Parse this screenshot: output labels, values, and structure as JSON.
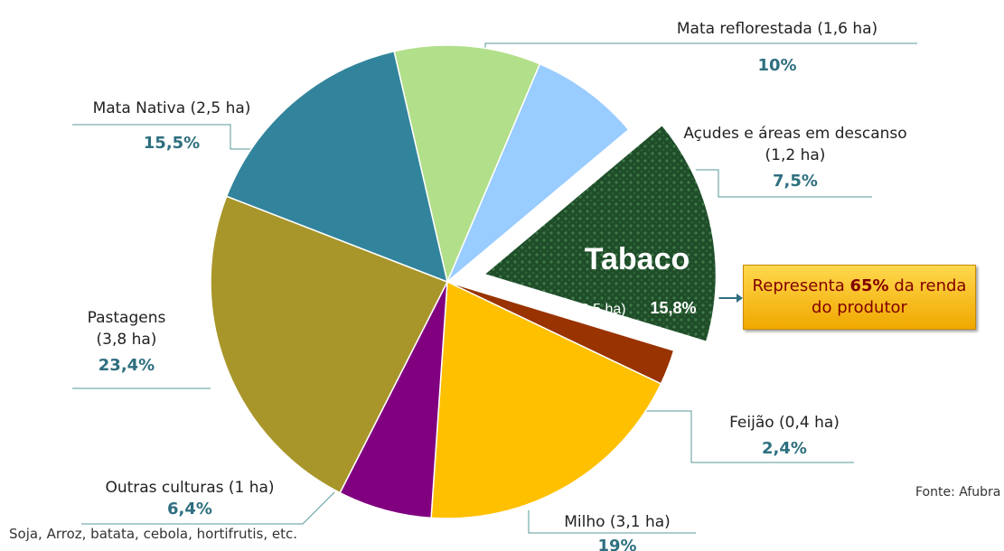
{
  "chart_data": {
    "type": "pie",
    "categories": [
      "Mata reflorestada  (1,6 ha)",
      "Açudes  e  áreas em descanso (1,2 ha)",
      "Tabaco",
      "Feijão  (0,4 ha)",
      "Milho (3,1 ha)",
      "Outras culturas (1 ha)",
      "Pastagens (3,8 ha)",
      "Mata Nativa (2,5 ha)"
    ],
    "values": [
      10,
      7.5,
      15.8,
      2.4,
      19,
      6.4,
      23.4,
      15.5
    ],
    "value_labels": [
      "10%",
      "7,5%",
      "15,8%",
      "2,4%",
      "19%",
      "6,4%",
      "23,4%",
      "15,5%"
    ],
    "colors": [
      "#b2df8a",
      "#99ccff",
      "#1f4d2a",
      "#993300",
      "#ffc000",
      "#800080",
      "#a8962a",
      "#31849b"
    ],
    "annotations": {
      "tabaco_area": "(2,5 ha)",
      "callout": [
        "Representa ",
        "65%",
        " da renda do produtor"
      ],
      "outras_note": "Soja, Arroz, batata, cebola, hortifrutis, etc.",
      "source": "Fonte: Afubra"
    }
  }
}
